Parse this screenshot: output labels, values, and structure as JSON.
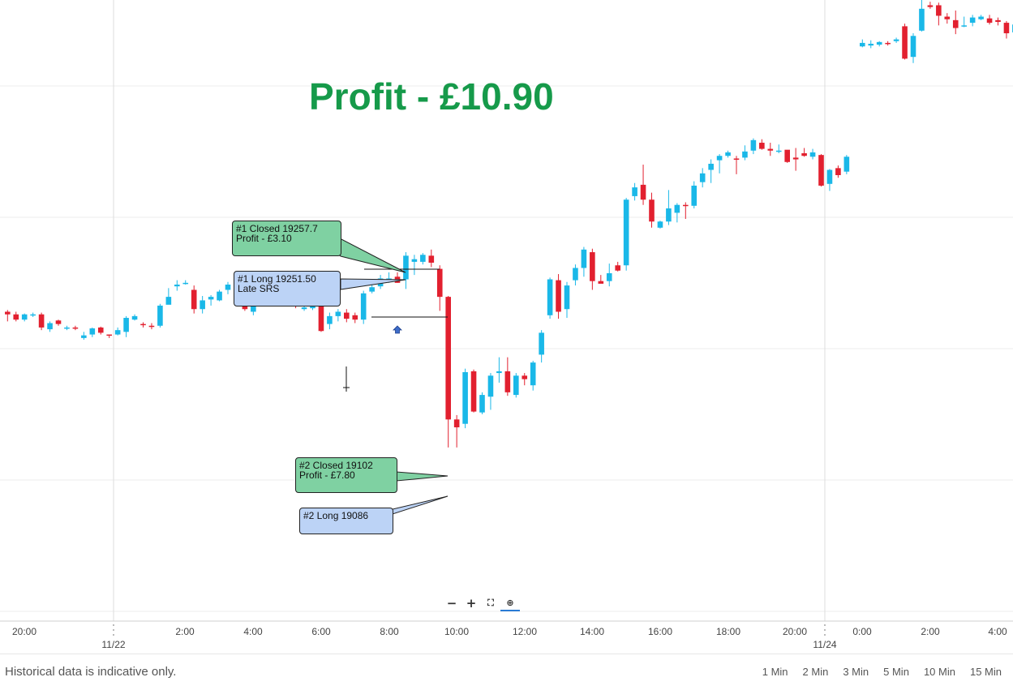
{
  "headline": "Profit - £10.90",
  "footer": {
    "note": "Historical data is indicative only.",
    "intervals": [
      "1 Min",
      "2 Min",
      "3 Min",
      "5 Min",
      "10 Min",
      "15 Min"
    ]
  },
  "zoom_controls": {
    "zoom_out": "−",
    "zoom_in": "+",
    "fit": "⛶",
    "search": "⊕"
  },
  "annotations": [
    {
      "id": "a1",
      "line1": "#1 Closed 19257.7",
      "line2": "Profit - £3.10",
      "style": "green"
    },
    {
      "id": "a2",
      "line1": "#1 Long 19251.50",
      "line2": "Late SRS",
      "style": "blue"
    },
    {
      "id": "a3",
      "line1": "#2 Closed 19102",
      "line2": "Profit - £7.80",
      "style": "green"
    },
    {
      "id": "a4",
      "line1": "#2 Long 19086",
      "line2": "",
      "style": "blue"
    }
  ],
  "colors": {
    "up": "#1ab8e8",
    "down": "#e2202f",
    "headline": "#169a4a",
    "grid": "#ececec"
  },
  "chart_data": {
    "type": "candlestick",
    "x_tick_labels": [
      "20:00",
      "2:00",
      "4:00",
      "6:00",
      "8:00",
      "10:00",
      "12:00",
      "14:00",
      "16:00",
      "18:00",
      "20:00",
      "0:00",
      "2:00",
      "4:00"
    ],
    "date_labels": [
      "11/22",
      "11/24"
    ],
    "grid": true,
    "candles": [
      [
        19194,
        19191,
        19196,
        19183,
        "d"
      ],
      [
        19191,
        19185,
        19194,
        19183,
        "d"
      ],
      [
        19185,
        19191,
        19192,
        19183,
        "u"
      ],
      [
        19190,
        19191,
        19193,
        19188,
        "u"
      ],
      [
        19191,
        19176,
        19193,
        19173,
        "d"
      ],
      [
        19174,
        19181,
        19183,
        19171,
        "u"
      ],
      [
        19184,
        19180,
        19185,
        19178,
        "d"
      ],
      [
        19175,
        19176,
        19178,
        19173,
        "u"
      ],
      [
        19176,
        19175,
        19178,
        19173,
        "d"
      ],
      [
        19164,
        19167,
        19171,
        19162,
        "u"
      ],
      [
        19168,
        19175,
        19176,
        19165,
        "u"
      ],
      [
        19176,
        19170,
        19177,
        19168,
        "d"
      ],
      [
        19167,
        19168,
        19168,
        19164,
        "d"
      ],
      [
        19168,
        19173,
        19176,
        19167,
        "u"
      ],
      [
        19171,
        19187,
        19189,
        19165,
        "u"
      ],
      [
        19185,
        19189,
        19191,
        19184,
        "u"
      ],
      [
        19180,
        19179,
        19182,
        19176,
        "d"
      ],
      [
        19178,
        19178,
        19181,
        19174,
        "d"
      ],
      [
        19178,
        19201,
        19203,
        19176,
        "u"
      ],
      [
        19202,
        19211,
        19221,
        19204,
        "u"
      ],
      [
        19223,
        19225,
        19230,
        19218,
        "u"
      ],
      [
        19227,
        19227,
        19230,
        19225,
        "u"
      ],
      [
        19219,
        19197,
        19224,
        19192,
        "d"
      ],
      [
        19197,
        19207,
        19212,
        19192,
        "u"
      ],
      [
        19208,
        19211,
        19213,
        19201,
        "u"
      ],
      [
        19207,
        19217,
        19219,
        19206,
        "u"
      ],
      [
        19219,
        19225,
        19228,
        19214,
        "u"
      ],
      [
        19225,
        19219,
        19235,
        19216,
        "d"
      ],
      [
        19227,
        19197,
        19229,
        19195,
        "d"
      ],
      [
        19194,
        19207,
        19212,
        19190,
        "u"
      ],
      [
        19207,
        19203,
        19220,
        19201,
        "d"
      ],
      [
        19213,
        19209,
        19217,
        19207,
        "u"
      ],
      [
        19214,
        19210,
        19217,
        19208,
        "d"
      ],
      [
        19213,
        19211,
        19213,
        19208,
        "u"
      ],
      [
        19211,
        19200,
        19211,
        19198,
        "d"
      ],
      [
        19199,
        19197,
        19203,
        19195,
        "u"
      ],
      [
        19203,
        19198,
        19204,
        19196,
        "u"
      ],
      [
        19204,
        19172,
        19206,
        19171,
        "d"
      ],
      [
        19180,
        19189,
        19193,
        19174,
        "u"
      ],
      [
        19189,
        19194,
        19197,
        19183,
        "u"
      ],
      [
        19186,
        19193,
        19197,
        19182,
        "d"
      ],
      [
        19190,
        19185,
        19193,
        19181,
        "d"
      ],
      [
        19185,
        19215,
        19218,
        19180,
        "u"
      ],
      [
        19217,
        19222,
        19226,
        19215,
        "u"
      ],
      [
        19223,
        19232,
        19236,
        19220,
        "u"
      ],
      [
        19232,
        19229,
        19239,
        19227,
        "u"
      ],
      [
        19227,
        19234,
        19239,
        19227,
        "d"
      ],
      [
        19231,
        19258,
        19262,
        19220,
        "u"
      ],
      [
        19254,
        19251,
        19259,
        19236,
        "u"
      ],
      [
        19251,
        19259,
        19261,
        19248,
        "u"
      ],
      [
        19258,
        19250,
        19265,
        19245,
        "d"
      ],
      [
        19243,
        19211,
        19247,
        19195,
        "d"
      ],
      [
        19211,
        19071,
        19212,
        19039,
        "d"
      ],
      [
        19071,
        19062,
        19076,
        19039,
        "d"
      ],
      [
        19066,
        19125,
        19129,
        19061,
        "u"
      ],
      [
        19126,
        19080,
        19128,
        19079,
        "d"
      ],
      [
        19079,
        19099,
        19102,
        19077,
        "u"
      ],
      [
        19097,
        19121,
        19124,
        19082,
        "u"
      ],
      [
        19126,
        19124,
        19142,
        19113,
        "u"
      ],
      [
        19126,
        19102,
        19142,
        19098,
        "d"
      ],
      [
        19099,
        19121,
        19124,
        19096,
        "u"
      ],
      [
        19121,
        19117,
        19124,
        19110,
        "d"
      ],
      [
        19110,
        19136,
        19138,
        19104,
        "u"
      ],
      [
        19145,
        19170,
        19173,
        19136,
        "u"
      ],
      [
        19231,
        19190,
        19233,
        19186,
        "u"
      ],
      [
        19194,
        19230,
        19237,
        19186,
        "d"
      ],
      [
        19197,
        19224,
        19228,
        19187,
        "u"
      ],
      [
        19230,
        19244,
        19248,
        19224,
        "u"
      ],
      [
        19244,
        19265,
        19268,
        19234,
        "u"
      ],
      [
        19262,
        19229,
        19266,
        19219,
        "d"
      ],
      [
        19226,
        19229,
        19236,
        19227,
        "d"
      ],
      [
        19229,
        19238,
        19249,
        19223,
        "u"
      ],
      [
        19247,
        19241,
        19251,
        19240,
        "d"
      ],
      [
        19247,
        19322,
        19324,
        19241,
        "u"
      ],
      [
        19326,
        19336,
        19341,
        19321,
        "u"
      ],
      [
        19339,
        19322,
        19362,
        19316,
        "d"
      ],
      [
        19322,
        19297,
        19330,
        19290,
        "d"
      ],
      [
        19297,
        19290,
        19298,
        19289,
        "u"
      ],
      [
        19297,
        19312,
        19333,
        19293,
        "u"
      ],
      [
        19307,
        19316,
        19318,
        19296,
        "u"
      ],
      [
        19316,
        19315,
        19319,
        19300,
        "d"
      ],
      [
        19315,
        19338,
        19343,
        19312,
        "u"
      ],
      [
        19342,
        19352,
        19358,
        19336,
        "u"
      ],
      [
        19356,
        19363,
        19368,
        19341,
        "u"
      ],
      [
        19367,
        19372,
        19374,
        19352,
        "u"
      ],
      [
        19376,
        19372,
        19378,
        19370,
        "u"
      ],
      [
        19369,
        19368,
        19372,
        19351,
        "d"
      ],
      [
        19370,
        19377,
        19384,
        19367,
        "u"
      ],
      [
        19390,
        19378,
        19392,
        19374,
        "u"
      ],
      [
        19387,
        19380,
        19391,
        19379,
        "d"
      ],
      [
        19380,
        19378,
        19387,
        19372,
        "d"
      ],
      [
        19378,
        19377,
        19385,
        19375,
        "u"
      ],
      [
        19379,
        19365,
        19378,
        19364,
        "d"
      ],
      [
        19368,
        19370,
        19381,
        19355,
        "d"
      ],
      [
        19375,
        19372,
        19381,
        19371,
        "d"
      ],
      [
        19376,
        19371,
        19380,
        19368,
        "u"
      ],
      [
        19373,
        19338,
        19374,
        19337,
        "d"
      ],
      [
        19340,
        19356,
        19357,
        19332,
        "u"
      ],
      [
        19358,
        19350,
        19361,
        19347,
        "d"
      ],
      [
        19354,
        19371,
        19373,
        19351,
        "u"
      ],
      [
        19501,
        19497,
        19505,
        19496,
        "u"
      ],
      [
        19498,
        19500,
        19504,
        19495,
        "u"
      ],
      [
        19502,
        19499,
        19503,
        19497,
        "u"
      ],
      [
        19500,
        19501,
        19503,
        19498,
        "d"
      ],
      [
        19503,
        19505,
        19507,
        19501,
        "u"
      ],
      [
        19520,
        19483,
        19523,
        19482,
        "d"
      ],
      [
        19485,
        19509,
        19512,
        19478,
        "u"
      ],
      [
        19515,
        19540,
        19552,
        19514,
        "u"
      ],
      [
        19544,
        19542,
        19548,
        19540,
        "d"
      ],
      [
        19544,
        19532,
        19547,
        19521,
        "d"
      ],
      [
        19531,
        19528,
        19535,
        19523,
        "d"
      ],
      [
        19527,
        19518,
        19538,
        19511,
        "d"
      ],
      [
        19520,
        19521,
        19531,
        19519,
        "u"
      ],
      [
        19524,
        19530,
        19533,
        19520,
        "u"
      ],
      [
        19531,
        19528,
        19533,
        19527,
        "u"
      ],
      [
        19529,
        19524,
        19533,
        19522,
        "d"
      ],
      [
        19525,
        19527,
        19530,
        19521,
        "d"
      ],
      [
        19524,
        19512,
        19526,
        19506,
        "d"
      ],
      [
        19513,
        19522,
        19525,
        19511,
        "u"
      ],
      [
        19518,
        19520,
        19522,
        19514,
        "d"
      ],
      [
        19523,
        19517,
        19528,
        19512,
        "d"
      ]
    ]
  }
}
